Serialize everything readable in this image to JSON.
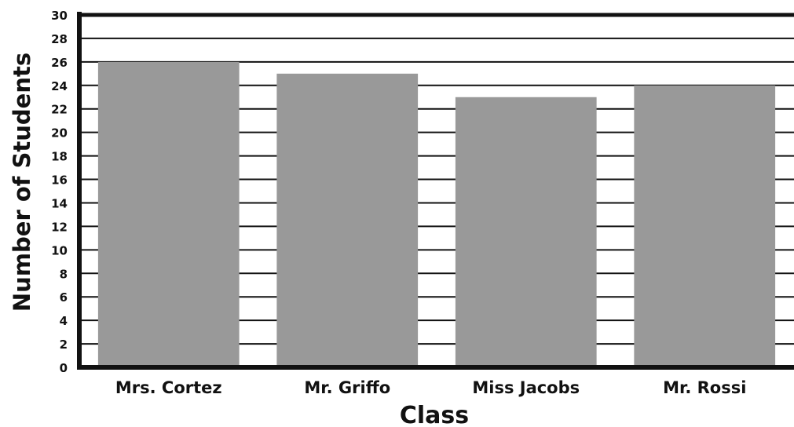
{
  "chart_data": {
    "type": "bar",
    "title": "",
    "xlabel": "Class",
    "ylabel": "Number of Students",
    "categories": [
      "Mrs. Cortez",
      "Mr. Griffo",
      "Miss Jacobs",
      "Mr. Rossi"
    ],
    "values": [
      26,
      25,
      23,
      24
    ],
    "ylim": [
      0,
      30
    ],
    "yticks": [
      0,
      2,
      4,
      6,
      8,
      10,
      12,
      14,
      16,
      18,
      20,
      22,
      24,
      26,
      28,
      30
    ],
    "grid": true,
    "legend": "none",
    "bar_color": "#999999",
    "axis_color": "#111111"
  }
}
